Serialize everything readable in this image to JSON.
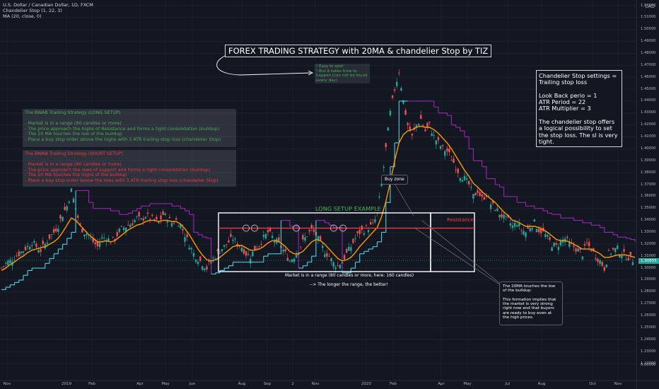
{
  "header": {
    "symbol": "U.S. Dollar / Canadian Dollar, 1D, FXCM",
    "indicator1": "Chandelier Stop (1, 22, 3)",
    "indicator2": "MA (20, close, 0)",
    "currency": "CAD"
  },
  "annotations": {
    "title": "FOREX TRADING STRATEGY with 20MA & chandelier Stop by TIZ",
    "green_note": "! Easy to spot\n! But it takes time to happen (can not be found every day)",
    "long_setup": "The BWAB Trading Strategy (LONG SETUP)\n\n- Market is in a range (80 candles or more)\n- The price approach the highs of Resistance and forms a tight consolidation (buildup)\n- The 20 MA touches the low of the buildup\n- Place a buy stop order above the highs with 3 ATR trailing stop loss (chandelier Stop)",
    "short_setup": "The BWAB Trading Strategy (SHORT SETUP)\n\n- Market is in a range (80 candles or more)\n- The price approach the lows of support and forms a tight consolidation (buildup)\n- The 20 MA touches the highs of the buildup\n- Place a buy stop order below the lows with 3 ATR trailing stop loss (chandelier Stop)",
    "settings": "Chandelier Stop settings =\nTrailing stop loss\n\nLook Back perio = 1\nATR Period = 22\nATR Multiplier = 3\n\nThe chandelier stop offers a logical possibility to set the stop loss. The sl is very tight.",
    "long_setup_example": "LONG SETUP EXAMPLE",
    "resistance": "Resistance",
    "buy_zone": "Buy zone",
    "range_note": "Market is in a range (80 candles or more, here: 160 candles)",
    "longer_range": "--> The longer the range, the better!",
    "ma_note": "The 20MA touches the low of the buildup:\n\nThis formation implies that the market is very strong right now and that buyers are ready to buy even at the high prices."
  },
  "chart_data": {
    "type": "candlestick",
    "price_axis_ticks": [
      "1.52000",
      "1.51000",
      "1.50000",
      "1.49000",
      "1.48000",
      "1.47000",
      "1.46000",
      "1.45000",
      "1.44000",
      "1.43000",
      "1.42000",
      "1.41000",
      "1.40000",
      "1.39000",
      "1.38000",
      "1.37000",
      "1.36000",
      "1.35000",
      "1.34000",
      "1.33000",
      "1.32000",
      "1.31000",
      "1.30000",
      "1.29000",
      "1.28000",
      "1.27000",
      "1.26000",
      "1.25000",
      "1.24000",
      "1.23000",
      "1.22000",
      "0.00000"
    ],
    "ylim": [
      1.215,
      1.525
    ],
    "current_price": "1.30655",
    "x_ticks": [
      "Nov",
      "2019",
      "Feb",
      "Apr",
      "May",
      "Jun",
      "Aug",
      "Sep",
      "2",
      "Nov",
      "2020",
      "Feb",
      "Apr",
      "May",
      "Jul",
      "Aug",
      "Oct",
      "Nov"
    ],
    "resistance_level": 1.3335,
    "series": [
      {
        "name": "close",
        "color": "#26a69a",
        "down_color": "#ef5350",
        "values": [
          1.3,
          1.304,
          1.306,
          1.309,
          1.312,
          1.315,
          1.318,
          1.322,
          1.318,
          1.315,
          1.32,
          1.326,
          1.33,
          1.336,
          1.345,
          1.352,
          1.365,
          1.35,
          1.335,
          1.33,
          1.328,
          1.322,
          1.318,
          1.325,
          1.326,
          1.322,
          1.325,
          1.331,
          1.334,
          1.336,
          1.338,
          1.342,
          1.34,
          1.344,
          1.342,
          1.34,
          1.338,
          1.345,
          1.342,
          1.338,
          1.34,
          1.336,
          1.328,
          1.32,
          1.312,
          1.308,
          1.304,
          1.3,
          1.306,
          1.31,
          1.315,
          1.318,
          1.322,
          1.325,
          1.32,
          1.318,
          1.312,
          1.31,
          1.316,
          1.32,
          1.325,
          1.33,
          1.326,
          1.322,
          1.318,
          1.312,
          1.306,
          1.31,
          1.316,
          1.322,
          1.328,
          1.332,
          1.328,
          1.32,
          1.314,
          1.31,
          1.304,
          1.302,
          1.306,
          1.312,
          1.318,
          1.325,
          1.33,
          1.332,
          1.334,
          1.336,
          1.345,
          1.37,
          1.4,
          1.43,
          1.45,
          1.465,
          1.44,
          1.42,
          1.41,
          1.42,
          1.425,
          1.415,
          1.42,
          1.41,
          1.405,
          1.4,
          1.398,
          1.392,
          1.385,
          1.378,
          1.375,
          1.37,
          1.36,
          1.365,
          1.358,
          1.362,
          1.354,
          1.35,
          1.346,
          1.342,
          1.34,
          1.335,
          1.338,
          1.332,
          1.33,
          1.335,
          1.338,
          1.332,
          1.33,
          1.325,
          1.32,
          1.318,
          1.322,
          1.325,
          1.32,
          1.318,
          1.315,
          1.312,
          1.32,
          1.316,
          1.31,
          1.306,
          1.3,
          1.312,
          1.315,
          1.316,
          1.312,
          1.31,
          1.308,
          1.306
        ]
      },
      {
        "name": "MA (20, close, 0)",
        "color": "#ff9800",
        "values": [
          1.298,
          1.3,
          1.303,
          1.305,
          1.308,
          1.31,
          1.313,
          1.315,
          1.316,
          1.317,
          1.318,
          1.32,
          1.322,
          1.325,
          1.33,
          1.336,
          1.342,
          1.34,
          1.336,
          1.332,
          1.328,
          1.325,
          1.322,
          1.322,
          1.323,
          1.322,
          1.323,
          1.326,
          1.329,
          1.332,
          1.334,
          1.336,
          1.337,
          1.339,
          1.34,
          1.34,
          1.339,
          1.34,
          1.34,
          1.339,
          1.339,
          1.337,
          1.333,
          1.328,
          1.322,
          1.316,
          1.311,
          1.307,
          1.306,
          1.307,
          1.309,
          1.312,
          1.315,
          1.318,
          1.319,
          1.319,
          1.317,
          1.315,
          1.315,
          1.316,
          1.318,
          1.321,
          1.323,
          1.323,
          1.321,
          1.318,
          1.314,
          1.312,
          1.312,
          1.314,
          1.318,
          1.322,
          1.324,
          1.323,
          1.32,
          1.316,
          1.312,
          1.308,
          1.306,
          1.307,
          1.309,
          1.313,
          1.318,
          1.322,
          1.326,
          1.33,
          1.334,
          1.343,
          1.356,
          1.372,
          1.39,
          1.405,
          1.412,
          1.415,
          1.416,
          1.418,
          1.419,
          1.418,
          1.418,
          1.416,
          1.413,
          1.409,
          1.405,
          1.4,
          1.394,
          1.388,
          1.382,
          1.377,
          1.371,
          1.368,
          1.364,
          1.361,
          1.358,
          1.355,
          1.351,
          1.347,
          1.344,
          1.34,
          1.339,
          1.337,
          1.335,
          1.335,
          1.335,
          1.334,
          1.332,
          1.33,
          1.327,
          1.324,
          1.323,
          1.323,
          1.322,
          1.32,
          1.318,
          1.316,
          1.316,
          1.316,
          1.314,
          1.312,
          1.309,
          1.309,
          1.31,
          1.311,
          1.311,
          1.311,
          1.31,
          1.309
        ]
      },
      {
        "name": "Chandelier Stop (1, 22, 3)",
        "color": "#9c27b0",
        "alt_color": "#4dd0e1",
        "values": [
          1.282,
          1.284,
          1.286,
          1.288,
          1.29,
          1.294,
          1.298,
          1.3,
          1.3,
          1.3,
          1.304,
          1.308,
          1.312,
          1.316,
          1.32,
          1.325,
          1.33,
          1.365,
          1.365,
          1.365,
          1.355,
          1.35,
          1.35,
          1.35,
          1.35,
          1.348,
          1.348,
          1.345,
          1.345,
          1.346,
          1.348,
          1.35,
          1.352,
          1.352,
          1.354,
          1.354,
          1.354,
          1.354,
          1.354,
          1.352,
          1.352,
          1.35,
          1.348,
          1.345,
          1.33,
          1.328,
          1.326,
          1.325,
          1.295,
          1.296,
          1.298,
          1.3,
          1.302,
          1.305,
          1.305,
          1.305,
          1.305,
          1.305,
          1.305,
          1.305,
          1.31,
          1.312,
          1.312,
          1.312,
          1.34,
          1.34,
          1.335,
          1.335,
          1.3,
          1.302,
          1.305,
          1.31,
          1.34,
          1.34,
          1.338,
          1.336,
          1.334,
          1.334,
          1.296,
          1.296,
          1.3,
          1.305,
          1.312,
          1.314,
          1.316,
          1.318,
          1.322,
          1.33,
          1.355,
          1.385,
          1.405,
          1.44,
          1.44,
          1.44,
          1.44,
          1.44,
          1.44,
          1.44,
          1.44,
          1.435,
          1.43,
          1.43,
          1.428,
          1.42,
          1.418,
          1.415,
          1.41,
          1.4,
          1.39,
          1.39,
          1.385,
          1.375,
          1.375,
          1.37,
          1.368,
          1.36,
          1.36,
          1.36,
          1.355,
          1.355,
          1.352,
          1.352,
          1.35,
          1.35,
          1.348,
          1.346,
          1.345,
          1.345,
          1.342,
          1.342,
          1.342,
          1.34,
          1.34,
          1.338,
          1.338,
          1.336,
          1.336,
          1.334,
          1.33,
          1.33,
          1.328,
          1.326,
          1.326,
          1.325,
          1.324,
          1.322
        ]
      }
    ],
    "crossings": [
      "1.37",
      "1.39"
    ],
    "marked_points": []
  }
}
